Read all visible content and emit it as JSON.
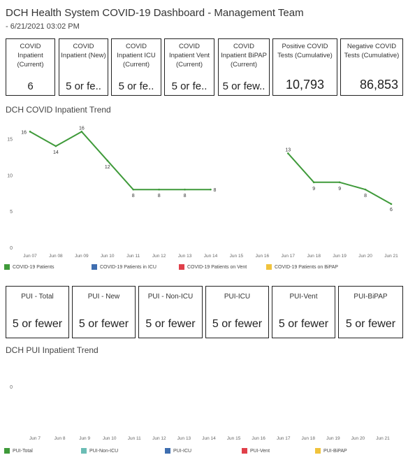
{
  "header": {
    "title": "DCH Health System COVID-19 Dashboard - Management Team",
    "subtitle": "- 6/21/2021 03:02 PM"
  },
  "kpis": [
    {
      "label": "COVID Inpatient (Current)",
      "value": "6"
    },
    {
      "label": "COVID Inpatient (New)",
      "value": "5 or fe.."
    },
    {
      "label": "COVID Inpatient ICU (Current)",
      "value": "5 or fe.."
    },
    {
      "label": "COVID Inpatient Vent (Current)",
      "value": "5 or fe.."
    },
    {
      "label": "COVID Inpatient BiPAP (Current)",
      "value": "5 or few.."
    },
    {
      "label": "Positive COVID Tests (Cumulative)",
      "value": "10,793"
    },
    {
      "label": "Negative COVID Tests (Cumulative)",
      "value": "86,853"
    }
  ],
  "pui_kpis": [
    {
      "label": "PUI - Total",
      "value": "5 or fewer"
    },
    {
      "label": "PUI - New",
      "value": "5 or fewer"
    },
    {
      "label": "PUI - Non-ICU",
      "value": "5 or fewer"
    },
    {
      "label": "PUI-ICU",
      "value": "5 or fewer"
    },
    {
      "label": "PUI-Vent",
      "value": "5 or fewer"
    },
    {
      "label": "PUI-BiPAP",
      "value": "5 or fewer"
    }
  ],
  "chart_data": [
    {
      "type": "line",
      "title": "DCH COVID Inpatient Trend",
      "categories": [
        "Jun 07",
        "Jun 08",
        "Jun 09",
        "Jun 10",
        "Jun 11",
        "Jun 12",
        "Jun 13",
        "Jun 14",
        "Jun 15",
        "Jun 16",
        "Jun 17",
        "Jun 18",
        "Jun 19",
        "Jun 20",
        "Jun 21"
      ],
      "yticks": [
        "0",
        "5",
        "10",
        "15"
      ],
      "ylim": [
        0,
        17
      ],
      "grid": false,
      "legend_position": "bottom",
      "series": [
        {
          "name": "COVID-19 Patients",
          "color": "#3f9a3a",
          "values": [
            16,
            14,
            16,
            12,
            8,
            8,
            8,
            8,
            null,
            null,
            13,
            9,
            9,
            8,
            6
          ]
        }
      ],
      "legend": [
        {
          "name": "COVID-19 Patients",
          "color": "#3f9a3a"
        },
        {
          "name": "COVID-19 Patients in ICU",
          "color": "#3f6eb0"
        },
        {
          "name": "COVID-19 Patients on Vent",
          "color": "#e0404a"
        },
        {
          "name": "COVID-19 Patients on BiPAP",
          "color": "#f0c33c"
        }
      ]
    },
    {
      "type": "line",
      "title": "DCH PUI Inpatient Trend",
      "categories": [
        "Jun 7",
        "Jun 8",
        "Jun 9",
        "Jun 10",
        "Jun 11",
        "Jun 12",
        "Jun 13",
        "Jun 14",
        "Jun 15",
        "Jun 16",
        "Jun 17",
        "Jun 18",
        "Jun 19",
        "Jun 20",
        "Jun 21"
      ],
      "yticks": [
        "0"
      ],
      "grid": false,
      "legend_position": "bottom",
      "series": [],
      "legend": [
        {
          "name": "PUI-Total",
          "color": "#3f9a3a"
        },
        {
          "name": "PUI-Non-ICU",
          "color": "#6bbdb5"
        },
        {
          "name": "PUI-ICU",
          "color": "#3f6eb0"
        },
        {
          "name": "PUI-Vent",
          "color": "#e0404a"
        },
        {
          "name": "PUI-BiPAP",
          "color": "#f0c33c"
        }
      ]
    }
  ]
}
